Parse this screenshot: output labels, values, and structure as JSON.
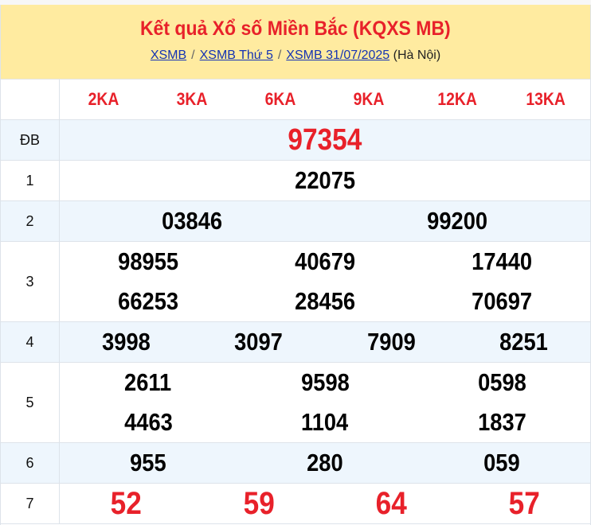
{
  "header": {
    "title": "Kết quả Xổ số Miền Bắc (KQXS MB)",
    "breadcrumbs": [
      "XSMB",
      "XSMB Thứ 5",
      "XSMB 31/07/2025"
    ],
    "region": "(Hà Nội)"
  },
  "codes": [
    "2KA",
    "3KA",
    "6KA",
    "9KA",
    "12KA",
    "13KA"
  ],
  "prizes": [
    {
      "label": "ĐB",
      "numbers": [
        "97354"
      ]
    },
    {
      "label": "1",
      "numbers": [
        "22075"
      ]
    },
    {
      "label": "2",
      "numbers": [
        "03846",
        "99200"
      ]
    },
    {
      "label": "3",
      "numbers": [
        "98955",
        "40679",
        "17440",
        "66253",
        "28456",
        "70697"
      ]
    },
    {
      "label": "4",
      "numbers": [
        "3998",
        "3097",
        "7909",
        "8251"
      ]
    },
    {
      "label": "5",
      "numbers": [
        "2611",
        "9598",
        "0598",
        "4463",
        "1104",
        "1837"
      ]
    },
    {
      "label": "6",
      "numbers": [
        "955",
        "280",
        "059"
      ]
    },
    {
      "label": "7",
      "numbers": [
        "52",
        "59",
        "64",
        "57"
      ]
    }
  ],
  "colors": {
    "accent": "#e8212a",
    "header_bg": "#ffeba0",
    "alt_row": "#eef6fd",
    "link": "#1433b3"
  }
}
